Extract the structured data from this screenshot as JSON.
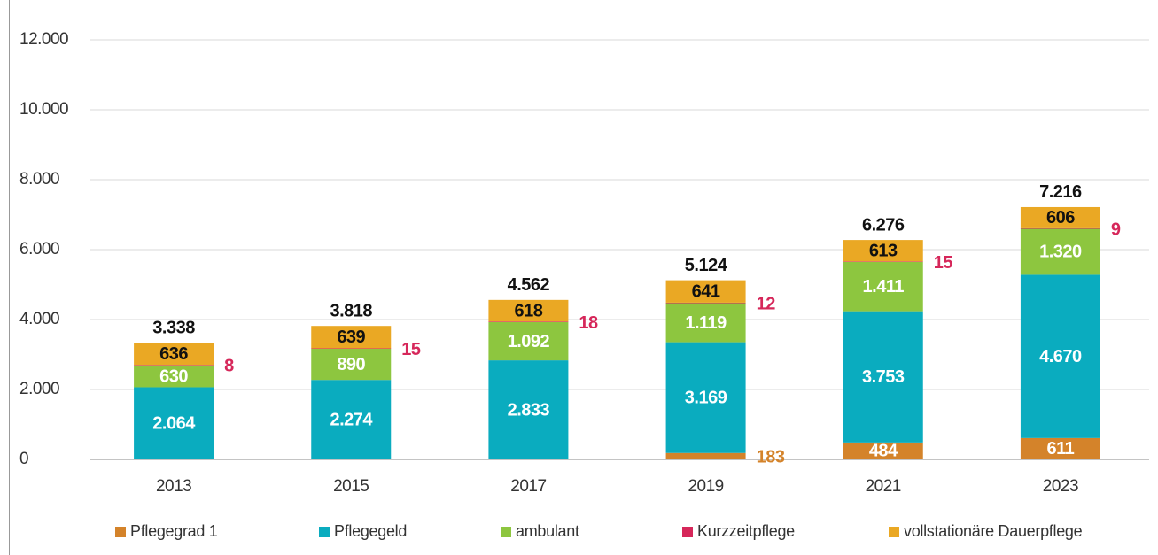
{
  "chart_data": {
    "type": "stacked_bar",
    "categories": [
      "2013",
      "2015",
      "2017",
      "2019",
      "2021",
      "2023"
    ],
    "series": [
      {
        "name": "Pflegegrad 1",
        "color": "#d4832a",
        "values": [
          null,
          null,
          null,
          183,
          484,
          611
        ],
        "value_labels": [
          null,
          null,
          null,
          "183",
          "484",
          "611"
        ]
      },
      {
        "name": "Pflegegeld",
        "color": "#0aacbf",
        "values": [
          2064,
          2274,
          2833,
          3169,
          3753,
          4670
        ],
        "value_labels": [
          "2.064",
          "2.274",
          "2.833",
          "3.169",
          "3.753",
          "4.670"
        ]
      },
      {
        "name": "ambulant",
        "color": "#8dc63f",
        "values": [
          630,
          890,
          1092,
          1119,
          1411,
          1320
        ],
        "value_labels": [
          "630",
          "890",
          "1.092",
          "1.119",
          "1.411",
          "1.320"
        ]
      },
      {
        "name": "Kurzzeitpflege",
        "color": "#d6275a",
        "values": [
          8,
          15,
          18,
          12,
          15,
          9
        ]
      },
      {
        "name": "vollstationäre Dauerpflege",
        "color": "#eaa824",
        "values": [
          636,
          639,
          618,
          641,
          613,
          606
        ]
      }
    ],
    "totals": {
      "values": [
        3338,
        3818,
        4562,
        5124,
        6276,
        7216
      ],
      "value_labels": [
        "3.338",
        "3.818",
        "4.562",
        "5.124",
        "6.276",
        "7.216"
      ]
    },
    "ylim": [
      0,
      12000
    ],
    "yticks": [
      0,
      {
        "value": 2000,
        "label": "2.000"
      },
      {
        "value": 4000,
        "label": "4.000"
      },
      {
        "value": 6000,
        "label": "6.000"
      },
      {
        "value": 8000,
        "label": "8.000"
      },
      {
        "value": 10000,
        "label": "10.000"
      },
      {
        "value": 12000,
        "label": "12.000"
      }
    ],
    "grid": true,
    "legend": "bottom"
  }
}
